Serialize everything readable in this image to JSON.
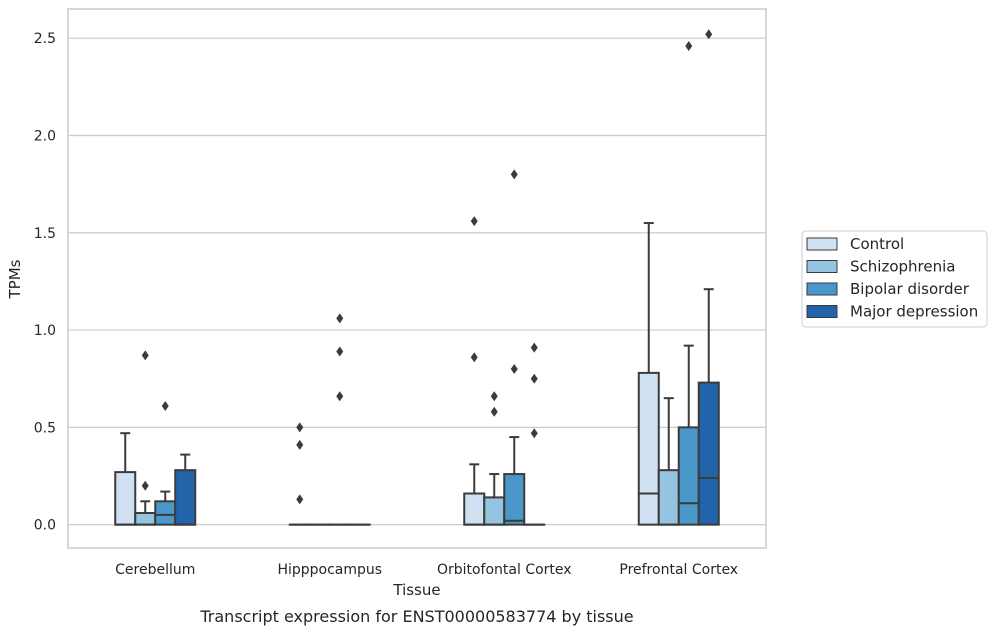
{
  "chart_data": {
    "type": "box",
    "caption": "Transcript expression for ENST00000583774 by tissue",
    "xlabel": "Tissue",
    "ylabel": "TPMs",
    "ylim": [
      -0.12,
      2.65
    ],
    "yticks": [
      0.0,
      0.5,
      1.0,
      1.5,
      2.0,
      2.5
    ],
    "ytick_labels": [
      "0.0",
      "0.5",
      "1.0",
      "1.5",
      "2.0",
      "2.5"
    ],
    "grid": true,
    "legend_position": "right",
    "categories": [
      "Cerebellum",
      "Hipppocampus",
      "Orbitofontal Cortex",
      "Prefrontal Cortex"
    ],
    "series": [
      {
        "name": "Control",
        "color": "#d0e1f2",
        "boxes": [
          {
            "q1": 0.0,
            "median": 0.0,
            "q3": 0.27,
            "whisker_low": 0.0,
            "whisker_high": 0.47,
            "outliers": []
          },
          {
            "q1": 0.0,
            "median": 0.0,
            "q3": 0.0,
            "whisker_low": 0.0,
            "whisker_high": 0.0,
            "outliers": [
              0.13,
              0.41,
              0.5
            ]
          },
          {
            "q1": 0.0,
            "median": 0.0,
            "q3": 0.16,
            "whisker_low": 0.0,
            "whisker_high": 0.31,
            "outliers": [
              0.86,
              1.56
            ]
          },
          {
            "q1": 0.0,
            "median": 0.16,
            "q3": 0.78,
            "whisker_low": 0.0,
            "whisker_high": 1.55,
            "outliers": []
          }
        ]
      },
      {
        "name": "Schizophrenia",
        "color": "#94c4df",
        "boxes": [
          {
            "q1": 0.0,
            "median": 0.0,
            "q3": 0.06,
            "whisker_low": 0.0,
            "whisker_high": 0.12,
            "outliers": [
              0.2,
              0.87
            ]
          },
          {
            "q1": 0.0,
            "median": 0.0,
            "q3": 0.0,
            "whisker_low": 0.0,
            "whisker_high": 0.0,
            "outliers": []
          },
          {
            "q1": 0.0,
            "median": 0.0,
            "q3": 0.14,
            "whisker_low": 0.0,
            "whisker_high": 0.26,
            "outliers": [
              0.58,
              0.66
            ]
          },
          {
            "q1": 0.0,
            "median": 0.0,
            "q3": 0.28,
            "whisker_low": 0.0,
            "whisker_high": 0.65,
            "outliers": []
          }
        ]
      },
      {
        "name": "Bipolar disorder",
        "color": "#4a98c9",
        "boxes": [
          {
            "q1": 0.0,
            "median": 0.05,
            "q3": 0.12,
            "whisker_low": 0.0,
            "whisker_high": 0.17,
            "outliers": [
              0.61
            ]
          },
          {
            "q1": 0.0,
            "median": 0.0,
            "q3": 0.0,
            "whisker_low": 0.0,
            "whisker_high": 0.0,
            "outliers": [
              0.66,
              0.89,
              1.06
            ]
          },
          {
            "q1": 0.0,
            "median": 0.02,
            "q3": 0.26,
            "whisker_low": 0.0,
            "whisker_high": 0.45,
            "outliers": [
              0.8,
              1.8
            ]
          },
          {
            "q1": 0.0,
            "median": 0.11,
            "q3": 0.5,
            "whisker_low": 0.0,
            "whisker_high": 0.92,
            "outliers": [
              2.46
            ]
          }
        ]
      },
      {
        "name": "Major depression",
        "color": "#2164aa",
        "boxes": [
          {
            "q1": 0.0,
            "median": 0.0,
            "q3": 0.28,
            "whisker_low": 0.0,
            "whisker_high": 0.36,
            "outliers": []
          },
          {
            "q1": 0.0,
            "median": 0.0,
            "q3": 0.0,
            "whisker_low": 0.0,
            "whisker_high": 0.0,
            "outliers": []
          },
          {
            "q1": 0.0,
            "median": 0.0,
            "q3": 0.0,
            "whisker_low": 0.0,
            "whisker_high": 0.0,
            "outliers": [
              0.47,
              0.75,
              0.91
            ]
          },
          {
            "q1": 0.0,
            "median": 0.24,
            "q3": 0.73,
            "whisker_low": 0.0,
            "whisker_high": 1.21,
            "outliers": [
              2.52
            ]
          }
        ]
      }
    ]
  }
}
